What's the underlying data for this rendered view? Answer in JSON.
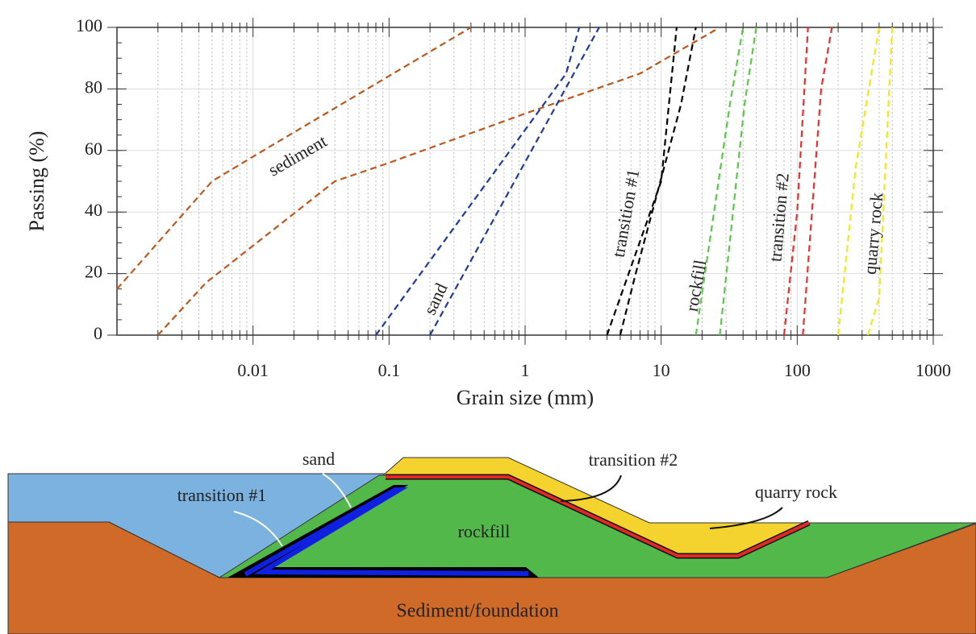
{
  "chart_data": {
    "type": "line",
    "xlabel": "Grain size (mm)",
    "ylabel": "Passing (%)",
    "xscale": "log",
    "xlim": [
      0.001,
      1000
    ],
    "xticks": [
      0.01,
      0.1,
      1,
      10,
      100,
      1000
    ],
    "ylim": [
      0,
      100
    ],
    "yticks": [
      0,
      20,
      40,
      60,
      80,
      100
    ],
    "grid": true,
    "series": [
      {
        "name": "sediment",
        "color": "#c0561a",
        "bounds": [
          {
            "x": [
              0.001,
              0.005,
              0.01,
              0.4
            ],
            "values": [
              15,
              50,
              58,
              100
            ]
          },
          {
            "x": [
              0.002,
              0.0045,
              0.04,
              0.1,
              1,
              7,
              27
            ],
            "values": [
              0,
              17,
              50,
              56,
              72,
              85,
              100
            ]
          }
        ]
      },
      {
        "name": "sand",
        "color": "#1f3a9c",
        "bounds": [
          {
            "x": [
              0.08,
              2,
              2.5
            ],
            "values": [
              0,
              85,
              100
            ]
          },
          {
            "x": [
              0.2,
              3.5
            ],
            "values": [
              0,
              100
            ]
          }
        ]
      },
      {
        "name": "transition #1",
        "color": "#000000",
        "bounds": [
          {
            "x": [
              4,
              10,
              13
            ],
            "values": [
              0,
              50,
              100
            ]
          },
          {
            "x": [
              5,
              6.5,
              14,
              18
            ],
            "values": [
              0,
              20,
              75,
              100
            ]
          }
        ]
      },
      {
        "name": "rockfill",
        "color": "#5cc84a",
        "bounds": [
          {
            "x": [
              18,
              32,
              40
            ],
            "values": [
              0,
              75,
              100
            ]
          },
          {
            "x": [
              27,
              41,
              50
            ],
            "values": [
              0,
              75,
              100
            ]
          }
        ]
      },
      {
        "name": "transition #2",
        "color": "#e83030",
        "bounds": [
          {
            "x": [
              80,
              100,
              120
            ],
            "values": [
              0,
              40,
              100
            ]
          },
          {
            "x": [
              110,
              150,
              180
            ],
            "values": [
              0,
              80,
              100
            ]
          }
        ]
      },
      {
        "name": "quarry rock",
        "color": "#f2e81a",
        "bounds": [
          {
            "x": [
              200,
              270,
              400
            ],
            "values": [
              0,
              55,
              100
            ]
          },
          {
            "x": [
              330,
              400,
              500
            ],
            "values": [
              0,
              12,
              100
            ]
          }
        ]
      }
    ]
  },
  "diagram": {
    "labels": {
      "sand": "sand",
      "transition_1": "transition #1",
      "transition_2": "transition #2",
      "quarry_rock": "quarry rock",
      "rockfill": "rockfill",
      "foundation": "Sediment/foundation"
    }
  }
}
